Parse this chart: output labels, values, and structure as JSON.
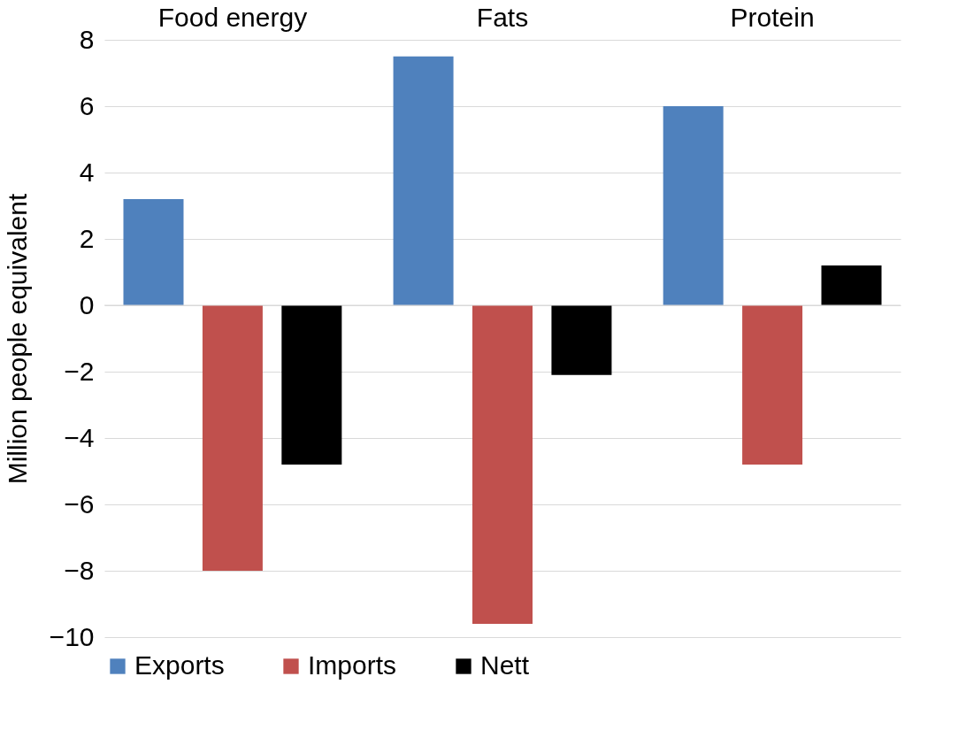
{
  "chart_data": {
    "type": "bar",
    "ylabel": "Million people equivalent",
    "categories": [
      "Food energy",
      "Fats",
      "Protein"
    ],
    "series": [
      {
        "name": "Exports",
        "color": "#4f81bd",
        "values": [
          3.2,
          7.5,
          6.0
        ]
      },
      {
        "name": "Imports",
        "color": "#c0504d",
        "values": [
          -8.0,
          -9.6,
          -4.8
        ]
      },
      {
        "name": "Nett",
        "color": "#000000",
        "values": [
          -4.8,
          -2.1,
          1.2
        ]
      }
    ],
    "ylim": [
      -10,
      8
    ],
    "yticks": [
      -10,
      -8,
      -6,
      -4,
      -2,
      0,
      2,
      4,
      6,
      8
    ],
    "grid": "y",
    "legend": "bottom"
  }
}
